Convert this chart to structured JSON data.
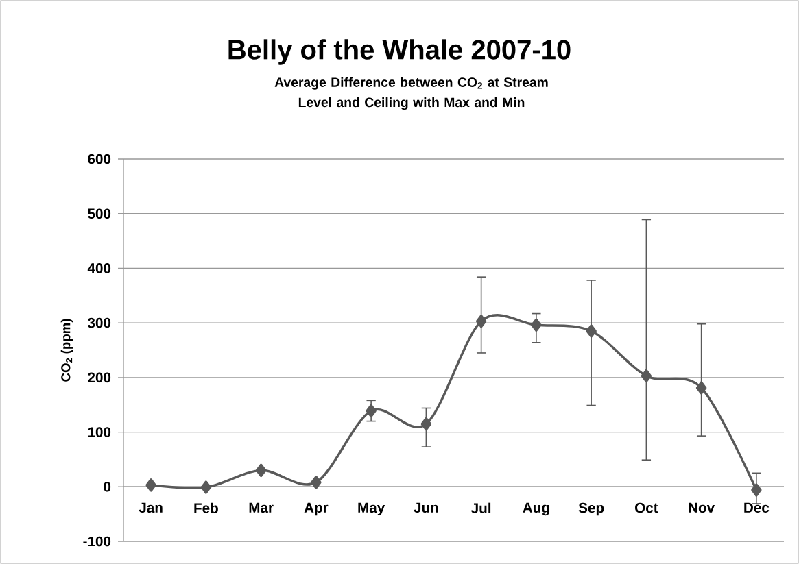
{
  "chart_data": {
    "type": "line",
    "title": "Belly of the Whale 2007-10",
    "subtitle": "Average Difference between CO$_{2}$ at Stream Level and Ceiling with Max and Min",
    "ylabel": "CO$_{2}$ (ppm)",
    "categories": [
      "Jan",
      "Feb",
      "Mar",
      "Apr",
      "May",
      "Jun",
      "Jul",
      "Aug",
      "Sep",
      "Oct",
      "Nov",
      "Dec"
    ],
    "series": [
      {
        "color": "#595959",
        "values": [
          3,
          -1,
          30,
          8,
          139,
          115,
          303,
          296,
          285,
          203,
          181,
          -6
        ],
        "errors": [
          null,
          null,
          null,
          null,
          [
            120,
            158
          ],
          [
            73,
            144
          ],
          [
            245,
            384
          ],
          [
            264,
            317
          ],
          [
            149,
            378
          ],
          [
            49,
            489
          ],
          [
            93,
            298
          ],
          [
            -31,
            25
          ]
        ]
      }
    ],
    "ylim": [
      -100,
      600
    ],
    "yticks": [
      -100,
      0,
      100,
      200,
      300,
      400,
      500,
      600
    ],
    "grid": "y",
    "marker": "diamond",
    "line_style": "solid"
  }
}
